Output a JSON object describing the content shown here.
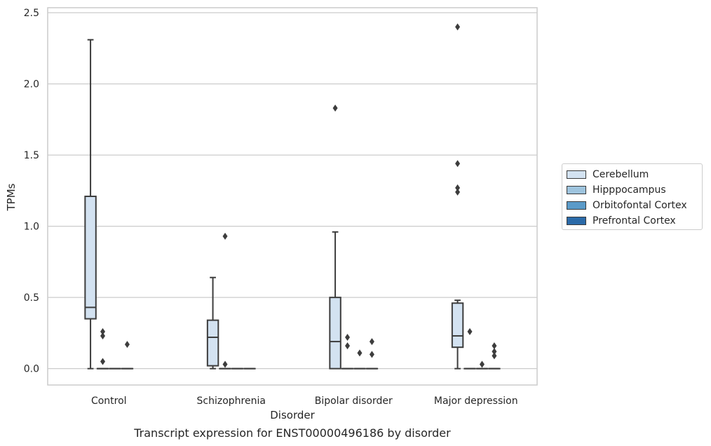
{
  "chart_data": {
    "type": "box",
    "title": "Transcript expression for ENST00000496186 by disorder",
    "xlabel": "Disorder",
    "ylabel": "TPMs",
    "ylim": [
      -0.115,
      2.535
    ],
    "yticks": [
      0.0,
      0.5,
      1.0,
      1.5,
      2.0,
      2.5
    ],
    "ytick_labels": [
      "0.0",
      "0.5",
      "1.0",
      "1.5",
      "2.0",
      "2.5"
    ],
    "categories": [
      "Control",
      "Schizophrenia",
      "Bipolar disorder",
      "Major depression"
    ],
    "grid": "horizontal",
    "legend_position": "right",
    "series": [
      {
        "name": "Cerebellum",
        "color": "#d3e2f1",
        "boxes": [
          {
            "whislo": 0.0,
            "q1": 0.35,
            "med": 0.43,
            "q3": 1.21,
            "whishi": 2.31,
            "fliers": []
          },
          {
            "whislo": 0.0,
            "q1": 0.02,
            "med": 0.22,
            "q3": 0.34,
            "whishi": 0.64,
            "fliers": []
          },
          {
            "whislo": 0.0,
            "q1": 0.0,
            "med": 0.19,
            "q3": 0.5,
            "whishi": 0.96,
            "fliers": [
              1.83
            ]
          },
          {
            "whislo": 0.0,
            "q1": 0.15,
            "med": 0.23,
            "q3": 0.46,
            "whishi": 0.48,
            "fliers": [
              1.44,
              1.27,
              1.24,
              2.4
            ]
          }
        ]
      },
      {
        "name": "Hipppocampus",
        "color": "#9ec4de",
        "boxes": [
          {
            "whislo": 0.0,
            "q1": 0.0,
            "med": 0.0,
            "q3": 0.0,
            "whishi": 0.0,
            "fliers": [
              0.26,
              0.23,
              0.05
            ]
          },
          {
            "whislo": 0.0,
            "q1": 0.0,
            "med": 0.0,
            "q3": 0.0,
            "whishi": 0.0,
            "fliers": [
              0.03,
              0.93
            ]
          },
          {
            "whislo": 0.0,
            "q1": 0.0,
            "med": 0.0,
            "q3": 0.0,
            "whishi": 0.0,
            "fliers": [
              0.22,
              0.16
            ]
          },
          {
            "whislo": 0.0,
            "q1": 0.0,
            "med": 0.0,
            "q3": 0.0,
            "whishi": 0.0,
            "fliers": [
              0.26
            ]
          }
        ]
      },
      {
        "name": "Orbitofontal Cortex",
        "color": "#5a9ac8",
        "boxes": [
          {
            "whislo": 0.0,
            "q1": 0.0,
            "med": 0.0,
            "q3": 0.0,
            "whishi": 0.0,
            "fliers": []
          },
          {
            "whislo": 0.0,
            "q1": 0.0,
            "med": 0.0,
            "q3": 0.0,
            "whishi": 0.0,
            "fliers": []
          },
          {
            "whislo": 0.0,
            "q1": 0.0,
            "med": 0.0,
            "q3": 0.0,
            "whishi": 0.0,
            "fliers": [
              0.11
            ]
          },
          {
            "whislo": 0.0,
            "q1": 0.0,
            "med": 0.0,
            "q3": 0.0,
            "whishi": 0.0,
            "fliers": [
              0.03
            ]
          }
        ]
      },
      {
        "name": "Prefrontal Cortex",
        "color": "#2b6aa8",
        "boxes": [
          {
            "whislo": 0.0,
            "q1": 0.0,
            "med": 0.0,
            "q3": 0.0,
            "whishi": 0.0,
            "fliers": [
              0.17
            ]
          },
          {
            "whislo": 0.0,
            "q1": 0.0,
            "med": 0.0,
            "q3": 0.0,
            "whishi": 0.0,
            "fliers": []
          },
          {
            "whislo": 0.0,
            "q1": 0.0,
            "med": 0.0,
            "q3": 0.0,
            "whishi": 0.0,
            "fliers": [
              0.19,
              0.1
            ]
          },
          {
            "whislo": 0.0,
            "q1": 0.0,
            "med": 0.0,
            "q3": 0.0,
            "whishi": 0.0,
            "fliers": [
              0.16,
              0.12,
              0.09
            ]
          }
        ]
      }
    ]
  }
}
